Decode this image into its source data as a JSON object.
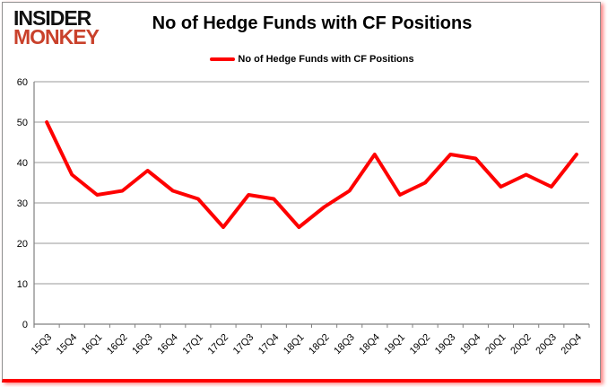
{
  "logo": {
    "line1": "INSIDER",
    "line2": "MONKEY"
  },
  "header": {
    "title": "No of Hedge Funds with CF Positions"
  },
  "legend": {
    "label": "No of Hedge Funds with CF Positions"
  },
  "colors": {
    "line": "#fe0000",
    "logo_black": "#111111",
    "logo_red": "#c9412b",
    "grid": "#9a9a9a",
    "axis": "#808080",
    "text": "#000000",
    "frame_border": "#8f8f8f",
    "frame_bottom": "#fe0000"
  },
  "chart_data": {
    "type": "line",
    "title": "No of Hedge Funds with CF Positions",
    "categories": [
      "15Q3",
      "15Q4",
      "16Q1",
      "16Q2",
      "16Q3",
      "16Q4",
      "17Q1",
      "17Q2",
      "17Q3",
      "17Q4",
      "18Q1",
      "18Q2",
      "18Q3",
      "18Q4",
      "19Q1",
      "19Q2",
      "19Q3",
      "19Q4",
      "20Q1",
      "20Q2",
      "20Q3",
      "20Q4"
    ],
    "series": [
      {
        "name": "No of Hedge Funds with CF Positions",
        "values": [
          50,
          37,
          32,
          33,
          38,
          33,
          31,
          24,
          32,
          31,
          24,
          29,
          33,
          42,
          32,
          35,
          42,
          41,
          34,
          37,
          34,
          42
        ]
      }
    ],
    "xlabel": "",
    "ylabel": "",
    "ylim": [
      0,
      60
    ],
    "ytick_step": 10,
    "grid": true,
    "legend_position": "top"
  }
}
